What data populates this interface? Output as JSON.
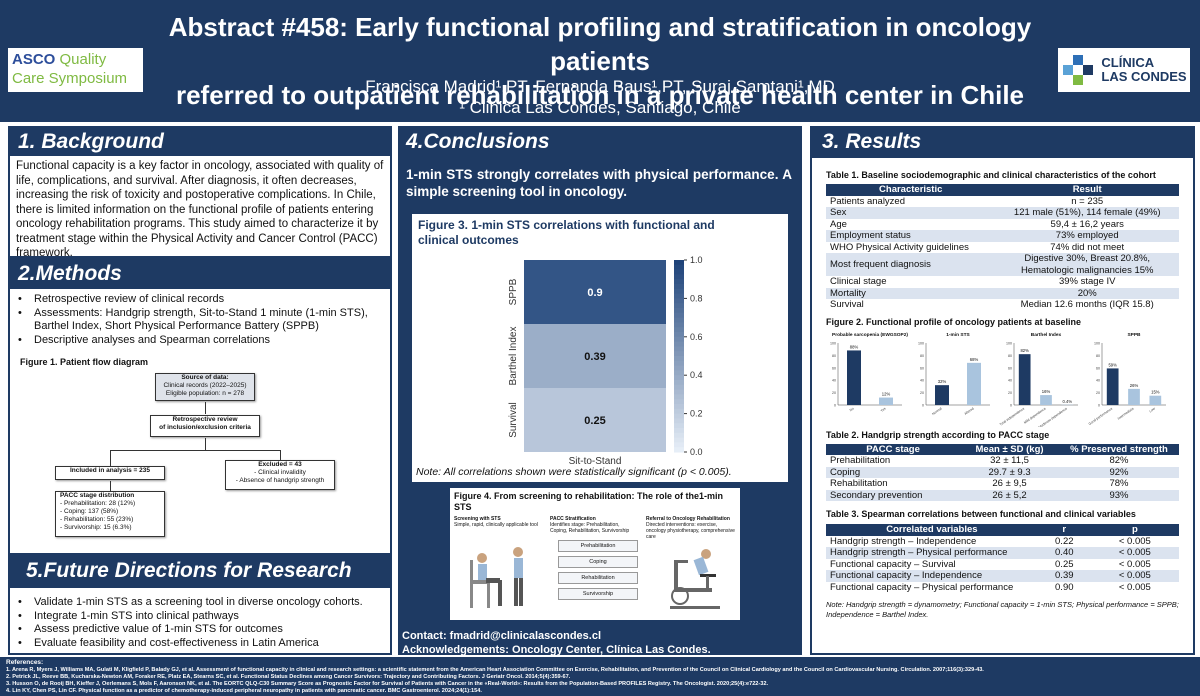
{
  "header": {
    "title_line1": "Abstract #458: Early functional profiling and stratification in oncology patients",
    "title_line2": "referred to outpatient rehabilitation in a private health center in Chile",
    "authors": "Francisca Madrid¹,PT, Fernanda Baus¹,PT, Suraj Samtani¹,MD",
    "affiliation": "¹ Clinica Las Condes, Santiago, Chile",
    "asco_logo": {
      "a": "ASCO",
      "b": " Quality",
      "c": "Care Symposium"
    },
    "clinic_logo": {
      "line1": "CLÍNICA",
      "line2": "LAS CONDES"
    }
  },
  "background": {
    "heading": "1. Background",
    "text": "Functional capacity is a key factor in oncology, associated with quality of life, complications, and survival. After diagnosis, it often decreases, increasing the risk of toxicity and postoperative complications. In Chile, there is limited information on the functional profile of patients entering oncology rehabilitation programs. This study aimed to characterize it by treatment stage within the Physical Activity and Cancer Control (PACC) framework."
  },
  "methods": {
    "heading": "2.Methods",
    "bullets": [
      "Retrospective review of clinical records",
      "Assessments: Handgrip strength, Sit-to-Stand 1 minute (1-min STS), Barthel Index, Short Physical Performance Battery (SPPB)",
      "Descriptive analyses and Spearman correlations"
    ],
    "fig1_caption": "Figure 1. Patient flow diagram",
    "flow": {
      "source_title": "Source of data:",
      "source_l1": "Clinical records (2022–2025)",
      "source_l2": "Eligible population: n = 278",
      "review_l1": "Retrospective review",
      "review_l2": "of inclusion/exclusion criteria",
      "included": "Included in analysis = 235",
      "excluded_title": "Excluded = 43",
      "excluded_l1": "- Clinical invalidity",
      "excluded_l2": "- Absence of handgrip strength",
      "pacc_title": "PACC stage distribution",
      "pacc_items": [
        "- Prehabilitation: 28 (12%)",
        "- Coping: 137 (58%)",
        "- Rehabilitation: 55 (23%)",
        "- Survivorship: 15 (6.3%)"
      ]
    }
  },
  "future": {
    "heading": "5.Future Directions for Research",
    "bullets": [
      "Validate 1-min STS as a screening tool in diverse oncology cohorts.",
      "Integrate 1-min STS into clinical pathways",
      "Assess predictive value of 1-min STS for outcomes",
      "Evaluate feasibility and cost-effectiveness in Latin America"
    ]
  },
  "conclusions": {
    "heading": "4.Conclusions",
    "text": "1-min STS strongly correlates with physical performance. A simple screening tool in oncology.",
    "fig3_caption": "Figure 3. 1-min STS correlations with functional and clinical outcomes",
    "fig3_note": "Note: All correlations shown were statistically significant (p < 0.005).",
    "fig4_caption": "Figure 4. From screening to rehabilitation: The role of the1-min STS",
    "fig4_steps": [
      {
        "num": "1",
        "title": "Screening with STS",
        "sub": "Simple, rapid, clinically applicable tool"
      },
      {
        "num": "2",
        "title": "PACC Stratification",
        "sub": "Identifies stage: Prehabilitation, Coping, Rehabilitation, Survivorship"
      },
      {
        "num": "3",
        "title": "Referral to Oncology Rehabilitation",
        "sub": "Directed interventions: exercise, oncology physiotherapy, comprehensive care"
      }
    ],
    "fig4_stages": [
      "Prehabilitation",
      "Coping",
      "Rehabilitation",
      "Survivorship"
    ],
    "contact": "Contact: fmadrid@clinicalascondes.cl",
    "ack": "Acknowledgements: Oncology Center, Clínica Las Condes."
  },
  "results": {
    "heading": "3. Results",
    "table1_caption": "Table 1. Baseline sociodemographic and clinical characteristics of the cohort",
    "table1_headers": [
      "Characteristic",
      "Result"
    ],
    "table1_rows": [
      [
        "Patients analyzed",
        "n = 235"
      ],
      [
        "Sex",
        "121 male (51%), 114 female (49%)"
      ],
      [
        "Age",
        "59,4 ± 16,2 years"
      ],
      [
        "Employment status",
        "73% employed"
      ],
      [
        "WHO Physical Activity guidelines",
        "74% did not meet"
      ],
      [
        "Most frequent diagnosis",
        "Digestive 30%, Breast 20.8%, Hematologic malignancies 15%"
      ],
      [
        "Clinical stage",
        "39% stage IV"
      ],
      [
        "Mortality",
        "20%"
      ],
      [
        "Survival",
        "Median 12.6 months (IQR 15.8)"
      ]
    ],
    "fig2_caption": "Figure 2. Functional profile of oncology patients at baseline",
    "table2_caption": "Table 2. Handgrip strength according to PACC stage",
    "table2_headers": [
      "PACC stage",
      "Mean ± SD (kg)",
      "% Preserved strength"
    ],
    "table2_rows": [
      [
        "Prehabilitation",
        "32 ± 11,5",
        "82%"
      ],
      [
        "Coping",
        "29.7 ± 9.3",
        "92%"
      ],
      [
        "Rehabilitation",
        "26 ± 9,5",
        "78%"
      ],
      [
        "Secondary prevention",
        "26 ± 5,2",
        "93%"
      ]
    ],
    "table3_caption": "Table 3. Spearman correlations between functional and clinical variables",
    "table3_headers": [
      "Correlated variables",
      "r",
      "p"
    ],
    "table3_rows": [
      [
        "Handgrip strength – Independence",
        "0.22",
        "< 0.005"
      ],
      [
        "Handgrip strength – Physical performance",
        "0.40",
        "< 0.005"
      ],
      [
        "Functional capacity – Survival",
        "0.25",
        "< 0.005"
      ],
      [
        "Functional capacity – Independence",
        "0.39",
        "< 0.005"
      ],
      [
        "Functional capacity – Physical performance",
        "0.90",
        "< 0.005"
      ]
    ],
    "table3_note": "Note: Handgrip strength = dynamometry; Functional capacity = 1-min STS; Physical performance = SPPB; Independence = Barthel Index."
  },
  "references": {
    "heading": "References:",
    "items": [
      "1.     Arena R, Myers J, Williams MA, Gulati M, Kligfield P, Balady GJ, et al. Assessment of functional capacity in clinical and research settings: a scientific statement from the American Heart Association Committee on Exercise, Rehabilitation, and Prevention of the Council on Clinical Cardiology and the Council on Cardiovascular Nursing. Circulation. 2007;116(3):329-43.",
      "2.     Petrick JL, Reeve BB, Kucharska-Newton AM, Foraker RE, Platz EA, Stearns SC, et al. Functional Status Declines among Cancer Survivors: Trajectory and Contributing Factors. J Geriatr Oncol. 2014;5(4):359-67.",
      "3.     Husson O, de Rooij BH, Kieffer J, Oerlemans S, Mols F, Aaronson NK, et al. The EORTC QLQ-C30 Summary Score as Prognostic Factor for Survival of Patients with Cancer in the «Real-World»: Results from the Population-Based PROFILES Registry. The Oncologist. 2020;25(4):e722-32.",
      "4.     Lin KY, Chen PS, Lin CF. Physical function as a predictor of chemotherapy-induced peripheral neuropathy in patients with pancreatic cancer. BMC Gastroenterol. 2024;24(1):154."
    ]
  },
  "chart_data": [
    {
      "type": "heatmap",
      "title": "Figure 3. 1-min STS correlations with functional and clinical outcomes",
      "categories_y": [
        "SPPB",
        "Barthel Index",
        "Survival"
      ],
      "categories_x": [
        "Sit-to-Stand"
      ],
      "values": [
        0.9,
        0.39,
        0.25
      ],
      "colorbar_range": [
        0.0,
        1.0
      ],
      "colorbar_ticks": [
        "0.0",
        "0.2",
        "0.4",
        "0.6",
        "0.8",
        "1.0"
      ]
    },
    {
      "type": "bar",
      "panels": [
        {
          "title": "Probable sarcopenia (EWGSOP2)",
          "categories": [
            "No",
            "Yes"
          ],
          "values": [
            88,
            12
          ],
          "labels": [
            "88%",
            "12%"
          ],
          "colors": [
            "#1e3a63",
            "#a9c4de"
          ],
          "ylim": [
            0,
            100
          ],
          "yticks": [
            "0",
            "20",
            "40",
            "60",
            "80",
            "100"
          ]
        },
        {
          "title": "1-min STS",
          "categories": [
            "Normal",
            "Altered"
          ],
          "values": [
            32,
            68
          ],
          "labels": [
            "32%",
            "68%"
          ],
          "colors": [
            "#1e3a63",
            "#a9c4de"
          ],
          "ylim": [
            0,
            100
          ],
          "yticks": [
            "0",
            "20",
            "40",
            "60",
            "80",
            "100"
          ]
        },
        {
          "title": "Barthel Index",
          "categories": [
            "Total independence",
            "Mild dependence",
            "Moderate dependence"
          ],
          "values": [
            82,
            16,
            0.4
          ],
          "labels": [
            "82%",
            "16%",
            "0.4%"
          ],
          "colors": [
            "#1e3a63",
            "#a9c4de",
            "#a9c4de"
          ],
          "ylim": [
            0,
            100
          ],
          "yticks": [
            "0",
            "20",
            "40",
            "60",
            "80",
            "100"
          ]
        },
        {
          "title": "SPPB",
          "categories": [
            "Good performance",
            "Intermediate",
            "Low"
          ],
          "values": [
            59,
            26,
            15
          ],
          "labels": [
            "59%",
            "26%",
            "15%"
          ],
          "colors": [
            "#1e3a63",
            "#a9c4de",
            "#a9c4de"
          ],
          "ylim": [
            0,
            100
          ],
          "yticks": [
            "0",
            "20",
            "40",
            "60",
            "80",
            "100"
          ]
        }
      ]
    }
  ]
}
